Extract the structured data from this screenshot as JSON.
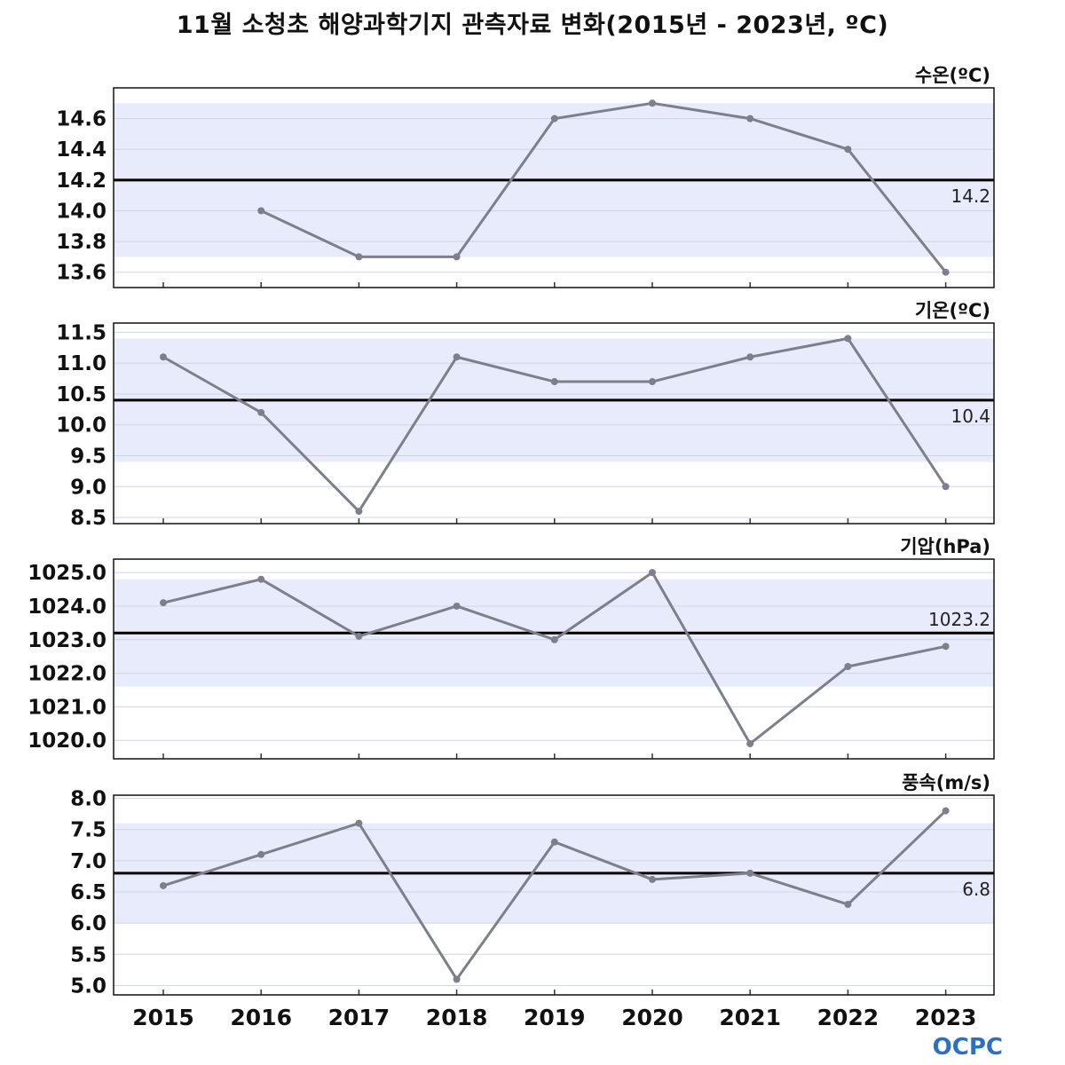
{
  "title": "11월 소청초 해양과학기지 관측자료 변화(2015년 - 2023년, ºC)",
  "logo": "OCPC",
  "colors": {
    "line": "#7d7f8c",
    "band": "#e8ebfb",
    "avg": "#000000",
    "grid": "#d0d4e4"
  },
  "chart_data": [
    {
      "type": "line",
      "title": "수온(ºC)",
      "x": [
        2015,
        2016,
        2017,
        2018,
        2019,
        2020,
        2021,
        2022,
        2023
      ],
      "values": [
        null,
        14.0,
        13.7,
        13.7,
        14.6,
        14.7,
        14.6,
        14.4,
        13.6
      ],
      "ylim": [
        13.5,
        14.8
      ],
      "yticks": [
        13.6,
        13.8,
        14.0,
        14.2,
        14.4,
        14.6
      ],
      "ytick_labels": [
        "13.6",
        "13.8",
        "14.0",
        "14.2",
        "14.4",
        "14.6"
      ],
      "average": 14.2,
      "average_label": "14.2",
      "range_band": [
        13.7,
        14.7
      ]
    },
    {
      "type": "line",
      "title": "기온(ºC)",
      "x": [
        2015,
        2016,
        2017,
        2018,
        2019,
        2020,
        2021,
        2022,
        2023
      ],
      "values": [
        11.1,
        10.2,
        8.6,
        11.1,
        10.7,
        10.7,
        11.1,
        11.4,
        9.0
      ],
      "ylim": [
        8.4,
        11.65
      ],
      "yticks": [
        8.5,
        9.0,
        9.5,
        10.0,
        10.5,
        11.0,
        11.5
      ],
      "ytick_labels": [
        "8.5",
        "9.0",
        "9.5",
        "10.0",
        "10.5",
        "11.0",
        "11.5"
      ],
      "average": 10.4,
      "average_label": "10.4",
      "range_band": [
        9.4,
        11.4
      ]
    },
    {
      "type": "line",
      "title": "기압(hPa)",
      "x": [
        2015,
        2016,
        2017,
        2018,
        2019,
        2020,
        2021,
        2022,
        2023
      ],
      "values": [
        1024.1,
        1024.8,
        1023.1,
        1024.0,
        1023.0,
        1025.0,
        1019.9,
        1022.2,
        1022.8
      ],
      "ylim": [
        1019.45,
        1025.4
      ],
      "yticks": [
        1020.0,
        1021.0,
        1022.0,
        1023.0,
        1024.0,
        1025.0
      ],
      "ytick_labels": [
        "1020.0",
        "1021.0",
        "1022.0",
        "1023.0",
        "1024.0",
        "1025.0"
      ],
      "average": 1023.2,
      "average_label": "1023.2",
      "range_band": [
        1021.6,
        1024.8
      ]
    },
    {
      "type": "line",
      "title": "풍속(m/s)",
      "x": [
        2015,
        2016,
        2017,
        2018,
        2019,
        2020,
        2021,
        2022,
        2023
      ],
      "values": [
        6.6,
        7.1,
        7.6,
        5.1,
        7.3,
        6.7,
        6.8,
        6.3,
        7.8
      ],
      "ylim": [
        4.85,
        8.05
      ],
      "yticks": [
        5.0,
        5.5,
        6.0,
        6.5,
        7.0,
        7.5,
        8.0
      ],
      "ytick_labels": [
        "5.0",
        "5.5",
        "6.0",
        "6.5",
        "7.0",
        "7.5",
        "8.0"
      ],
      "average": 6.8,
      "average_label": "6.8",
      "range_band": [
        6.0,
        7.6
      ]
    }
  ],
  "x_tick_labels": [
    "2015",
    "2016",
    "2017",
    "2018",
    "2019",
    "2020",
    "2021",
    "2022",
    "2023"
  ]
}
